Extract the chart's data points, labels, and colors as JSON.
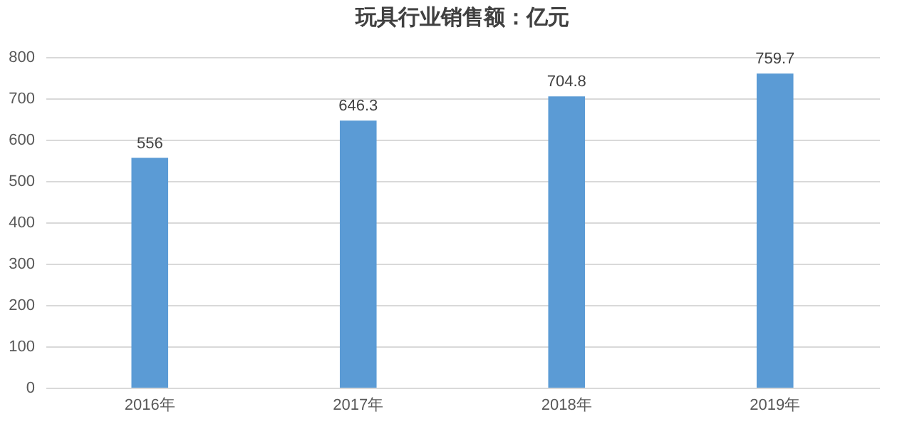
{
  "chart_data": {
    "type": "bar",
    "title": "玩具行业销售额：亿元",
    "categories": [
      "2016年",
      "2017年",
      "2018年",
      "2019年"
    ],
    "values": [
      556,
      646.3,
      704.8,
      759.7
    ],
    "color": "#5b9bd5",
    "ylim": [
      0,
      800
    ],
    "yticks": [
      0,
      100,
      200,
      300,
      400,
      500,
      600,
      700,
      800
    ],
    "grid": "y",
    "data_labels": true
  }
}
